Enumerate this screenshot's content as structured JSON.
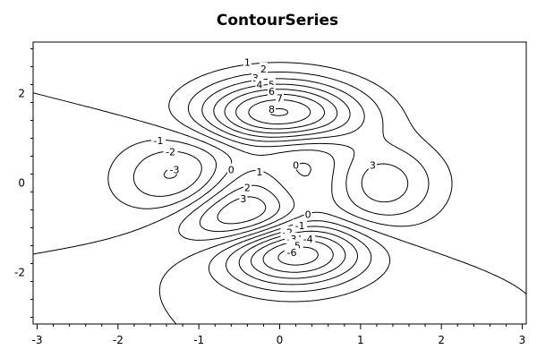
{
  "chart_data": {
    "type": "contour",
    "title": "ContourSeries",
    "xlabel": "",
    "ylabel": "",
    "xlim": [
      -3.05,
      3.05
    ],
    "ylim": [
      -3.15,
      3.15
    ],
    "x_ticks": [
      -3,
      -2,
      -1,
      0,
      1,
      2,
      3
    ],
    "y_ticks": [
      -2,
      0,
      2
    ],
    "grid": false,
    "line_color": "#000000",
    "peaks": [
      {
        "x": 0.0,
        "y": 1.6,
        "level": 8
      },
      {
        "x": -1.3,
        "y": 0.2,
        "level": -3
      },
      {
        "x": 1.3,
        "y": 0.0,
        "level": 3
      },
      {
        "x": -0.4,
        "y": -0.7,
        "level": 3
      },
      {
        "x": 0.2,
        "y": -1.8,
        "level": -6
      }
    ],
    "contour_labels": [
      {
        "text": "1",
        "x": -0.4,
        "y": 2.7
      },
      {
        "text": "2",
        "x": -0.2,
        "y": 2.55
      },
      {
        "text": "3",
        "x": -0.3,
        "y": 2.35
      },
      {
        "text": "4",
        "x": -0.25,
        "y": 2.2
      },
      {
        "text": "5",
        "x": -0.1,
        "y": 2.2
      },
      {
        "text": "6",
        "x": -0.1,
        "y": 2.05
      },
      {
        "text": "7",
        "x": 0.0,
        "y": 1.9
      },
      {
        "text": "8",
        "x": -0.1,
        "y": 1.65
      },
      {
        "text": "-1",
        "x": -1.5,
        "y": 0.95
      },
      {
        "text": "-2",
        "x": -1.35,
        "y": 0.7
      },
      {
        "text": "-3",
        "x": -1.3,
        "y": 0.3
      },
      {
        "text": "0",
        "x": -0.6,
        "y": 0.3
      },
      {
        "text": "1",
        "x": -0.25,
        "y": 0.25
      },
      {
        "text": "0",
        "x": 0.2,
        "y": 0.4
      },
      {
        "text": "3",
        "x": 1.15,
        "y": 0.4
      },
      {
        "text": "2",
        "x": -0.4,
        "y": -0.1
      },
      {
        "text": "3",
        "x": -0.45,
        "y": -0.35
      },
      {
        "text": "0",
        "x": 0.35,
        "y": -0.7
      },
      {
        "text": "-1",
        "x": 0.25,
        "y": -0.95
      },
      {
        "text": "-2",
        "x": 0.1,
        "y": -1.1
      },
      {
        "text": "-3",
        "x": 0.15,
        "y": -1.25
      },
      {
        "text": "-4",
        "x": 0.35,
        "y": -1.25
      },
      {
        "text": "-5",
        "x": 0.2,
        "y": -1.4
      },
      {
        "text": "-6",
        "x": 0.15,
        "y": -1.55
      }
    ]
  }
}
